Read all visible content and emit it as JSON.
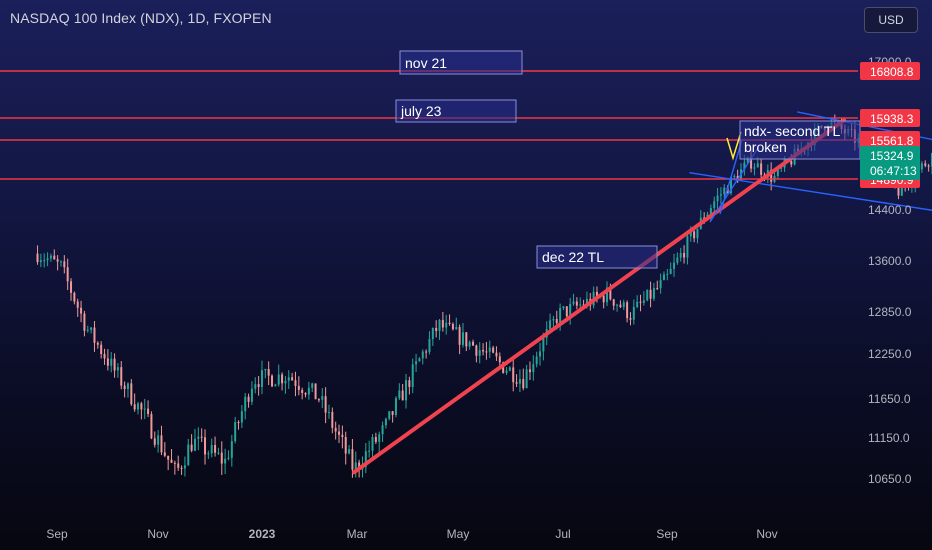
{
  "header": {
    "title": "NASDAQ 100 Index (NDX), 1D, FXOPEN",
    "currency_button": "USD"
  },
  "colors": {
    "up": "#26a69a",
    "down": "#ef9a9a",
    "level": "#f23645",
    "trendline": "#f23645",
    "channel": "#2962ff",
    "last_price": "#089981",
    "annotation_text": "#ffeb3b"
  },
  "chart_data": {
    "type": "candlestick",
    "title": "NASDAQ 100 Index (NDX), 1D, FXOPEN",
    "x_tick_labels": [
      "Sep",
      "Nov",
      "2023",
      "Mar",
      "May",
      "Jul",
      "Sep",
      "Nov"
    ],
    "y_tick_labels": [
      17000.0,
      14400.0,
      13600.0,
      12850.0,
      12250.0,
      11650.0,
      11150.0,
      10650.0
    ],
    "y_range": [
      10300,
      17100
    ],
    "grid": false,
    "price_levels": [
      {
        "label": "nov 21",
        "price": 16808.8,
        "badge": "16808.8"
      },
      {
        "label": "july 23",
        "price": 15938.3,
        "badge": "15938.3"
      },
      {
        "label": "",
        "price": 15561.8,
        "badge": "15561.8"
      },
      {
        "label": "",
        "price": 14890.9,
        "badge": "14890.9"
      }
    ],
    "last_price": {
      "value": "15324.9",
      "countdown": "06:47:13"
    },
    "trendlines": [
      {
        "label": "dec 22 TL",
        "from": {
          "date": "2022-12-28",
          "price": 10580
        },
        "to": {
          "date": "2023-07-25",
          "price": 15900
        }
      }
    ],
    "channel": [
      {
        "from": {
          "date": "2023-07-05",
          "price": 16050
        },
        "to": {
          "date": "2023-11-15",
          "price": 14950
        }
      },
      {
        "from": {
          "date": "2023-05-20",
          "price": 15000
        },
        "to": {
          "date": "2023-11-15",
          "price": 13950
        }
      }
    ],
    "annotations": [
      {
        "text": "ndx- second TL\nbroken"
      }
    ],
    "anchors": [
      {
        "date": "2022-08-15",
        "price": 13700
      },
      {
        "date": "2022-08-25",
        "price": 13500
      },
      {
        "date": "2022-09-05",
        "price": 12600
      },
      {
        "date": "2022-09-15",
        "price": 12100
      },
      {
        "date": "2022-09-30",
        "price": 11400
      },
      {
        "date": "2022-10-13",
        "price": 10700
      },
      {
        "date": "2022-10-20",
        "price": 11100
      },
      {
        "date": "2022-11-03",
        "price": 10850
      },
      {
        "date": "2022-11-15",
        "price": 11900
      },
      {
        "date": "2022-11-30",
        "price": 11950
      },
      {
        "date": "2022-12-13",
        "price": 11650
      },
      {
        "date": "2022-12-28",
        "price": 10750
      },
      {
        "date": "2023-01-10",
        "price": 11250
      },
      {
        "date": "2023-02-02",
        "price": 12650
      },
      {
        "date": "2023-02-15",
        "price": 12400
      },
      {
        "date": "2023-03-10",
        "price": 11900
      },
      {
        "date": "2023-03-25",
        "price": 12800
      },
      {
        "date": "2023-04-15",
        "price": 13100
      },
      {
        "date": "2023-04-25",
        "price": 12800
      },
      {
        "date": "2023-05-10",
        "price": 13300
      },
      {
        "date": "2023-05-30",
        "price": 14500
      },
      {
        "date": "2023-06-15",
        "price": 15200
      },
      {
        "date": "2023-06-25",
        "price": 14900
      },
      {
        "date": "2023-07-18",
        "price": 15900
      },
      {
        "date": "2023-08-05",
        "price": 15400
      },
      {
        "date": "2023-08-18",
        "price": 14700
      },
      {
        "date": "2023-09-05",
        "price": 15500
      },
      {
        "date": "2023-09-15",
        "price": 15400
      },
      {
        "date": "2023-09-28",
        "price": 14700
      },
      {
        "date": "2023-10-05",
        "price": 14550
      },
      {
        "date": "2023-10-13",
        "price": 14500
      },
      {
        "date": "2023-10-25",
        "price": 15300
      }
    ]
  }
}
